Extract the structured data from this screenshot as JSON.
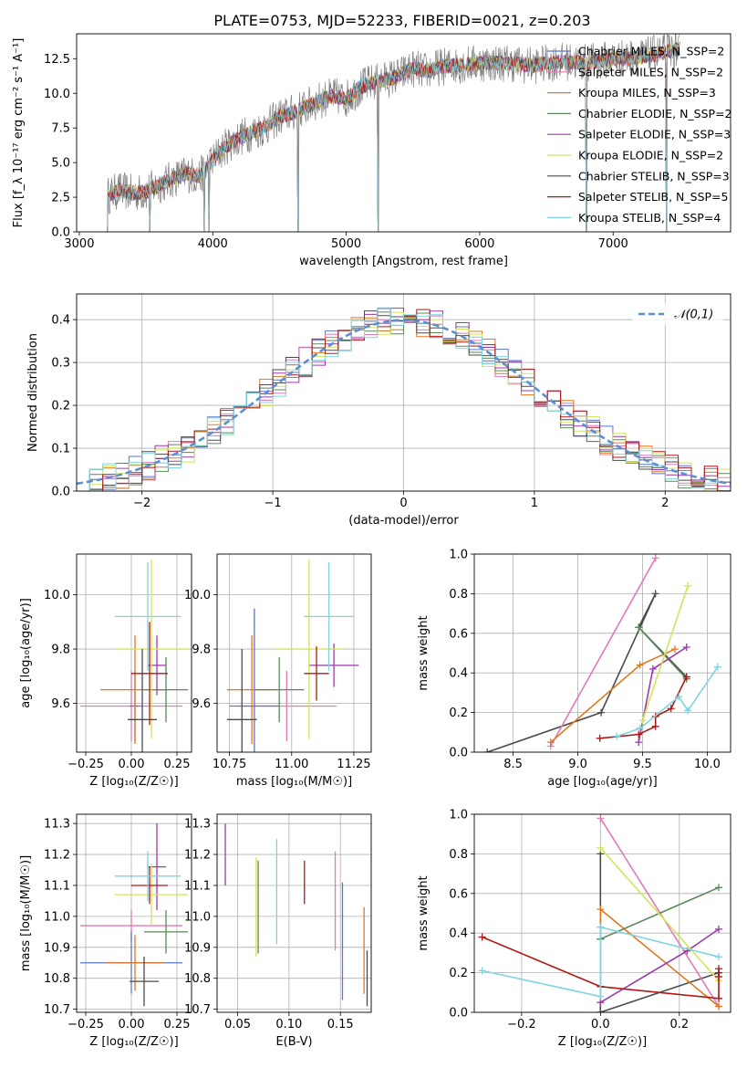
{
  "figure": {
    "title": "PLATE=0753, MJD=52233, FIBERID=0021, z=0.203"
  },
  "chart_data": [
    {
      "id": "spectrum",
      "type": "line",
      "title": "PLATE=0753, MJD=52233, FIBERID=0021, z=0.203",
      "xlabel": "wavelength [Angstrom, rest frame]",
      "ylabel": "Flux [f_λ 10⁻¹⁷ erg cm⁻² s⁻¹ A⁻¹]",
      "xlim": [
        2980,
        7880
      ],
      "ylim": [
        0,
        14.3
      ],
      "xticks": [
        3000,
        4000,
        5000,
        6000,
        7000
      ],
      "yticks": [
        0.0,
        2.5,
        5.0,
        7.5,
        10.0,
        12.5
      ],
      "grid": false,
      "legend_position": "right",
      "continuum": {
        "x": [
          3210,
          3300,
          3400,
          3500,
          3600,
          3700,
          3800,
          3900,
          4000,
          4100,
          4200,
          4300,
          4400,
          4500,
          4600,
          4700,
          4800,
          4900,
          5000,
          5100,
          5200,
          5300,
          5400,
          5500,
          5600,
          5700,
          5800,
          5900,
          6000,
          6200,
          6400,
          6600,
          6800,
          7000,
          7200,
          7400,
          7500
        ],
        "y": [
          2.6,
          3.0,
          2.8,
          2.9,
          3.4,
          3.8,
          4.2,
          4.0,
          5.2,
          6.2,
          6.8,
          7.2,
          7.6,
          8.3,
          8.6,
          9.0,
          9.5,
          9.8,
          9.6,
          10.4,
          10.8,
          11.0,
          11.3,
          11.8,
          11.6,
          11.9,
          12.0,
          12.1,
          12.2,
          12.2,
          12.0,
          12.3,
          12.2,
          12.5,
          12.6,
          13.0,
          13.2
        ]
      },
      "series": [
        {
          "name": "Chabrier MILES, N_SSP=2",
          "color": "#5a78c8"
        },
        {
          "name": "Salpeter MILES, N_SSP=2",
          "color": "#e07ab8"
        },
        {
          "name": "Kroupa MILES, N_SSP=3",
          "color": "#e07820"
        },
        {
          "name": "Chabrier ELODIE, N_SSP=2",
          "color": "#5a8a5a"
        },
        {
          "name": "Salpeter ELODIE, N_SSP=3",
          "color": "#9b3aa8"
        },
        {
          "name": "Kroupa ELODIE, N_SSP=2",
          "color": "#d4e35a"
        },
        {
          "name": "Chabrier STELIB, N_SSP=3",
          "color": "#4a4a4a"
        },
        {
          "name": "Salpeter STELIB, N_SSP=5",
          "color": "#b01818"
        },
        {
          "name": "Kroupa STELIB, N_SSP=4",
          "color": "#80d4e0"
        }
      ],
      "data_color": "#808080"
    },
    {
      "id": "residuals",
      "type": "line",
      "xlabel": "(data-model)/error",
      "ylabel": "Normed distribution",
      "xlim": [
        -2.5,
        2.5
      ],
      "ylim": [
        0,
        0.46
      ],
      "xticks": [
        -2,
        -1,
        0,
        1,
        2
      ],
      "yticks": [
        0.0,
        0.1,
        0.2,
        0.3,
        0.4
      ],
      "grid": true,
      "legend": "𝒩(0,1)",
      "legend_position": "top-right",
      "normal_color": "#5b8fd4",
      "bin_width": 0.1
    },
    {
      "id": "age-vs-Z",
      "type": "scatter",
      "xlabel": "Z [log₁₀(Z/Z☉)]",
      "ylabel": "age  [log₁₀(age/yr)]",
      "xlim": [
        -0.3,
        0.33
      ],
      "ylim": [
        9.42,
        10.15
      ],
      "xticks": [
        -0.25,
        0.0,
        0.25
      ],
      "yticks": [
        9.6,
        9.8,
        10.0
      ],
      "grid": true,
      "points": [
        {
          "series": "Salpeter MILES",
          "x": 0.0,
          "y": 9.59,
          "xerr": 0.28,
          "yerr": 0.13
        },
        {
          "series": "Chabrier MILES",
          "x": 0.02,
          "y": 9.59,
          "xerr": 0.03,
          "yerr": 0.13
        },
        {
          "series": "Kroupa MILES",
          "x": 0.02,
          "y": 9.65,
          "xerr": 0.19,
          "yerr": 0.2
        },
        {
          "series": "Chabrier ELODIE",
          "x": 0.19,
          "y": 9.65,
          "xerr": 0.12,
          "yerr": 0.12
        },
        {
          "series": "Salpeter ELODIE",
          "x": 0.14,
          "y": 9.74,
          "xerr": 0.05,
          "yerr": 0.11
        },
        {
          "series": "Kroupa ELODIE",
          "x": 0.11,
          "y": 9.8,
          "xerr": 0.2,
          "yerr": 0.33
        },
        {
          "series": "Chabrier STELIB",
          "x": 0.06,
          "y": 9.54,
          "xerr": 0.08,
          "yerr": 0.26
        },
        {
          "series": "Salpeter STELIB",
          "x": 0.1,
          "y": 9.71,
          "xerr": 0.1,
          "yerr": 0.19
        },
        {
          "series": "Kroupa STELIB",
          "x": 0.09,
          "y": 9.92,
          "xerr": 0.18,
          "yerr": 0.2
        }
      ]
    },
    {
      "id": "age-vs-mass",
      "type": "scatter",
      "xlabel": "mass [log₁₀(M/M☉)]",
      "xlim": [
        10.7,
        11.32
      ],
      "ylim": [
        9.42,
        10.15
      ],
      "xticks": [
        10.75,
        11.0,
        11.25
      ],
      "yticks": [
        9.6,
        9.8,
        10.0
      ],
      "grid": true,
      "points": [
        {
          "series": "Salpeter MILES",
          "x": 10.98,
          "y": 9.59,
          "xerr": 0.2,
          "yerr": 0.13
        },
        {
          "series": "Chabrier MILES",
          "x": 10.85,
          "y": 9.59,
          "xerr": 0.1,
          "yerr": 0.36
        },
        {
          "series": "Kroupa MILES",
          "x": 10.84,
          "y": 9.65,
          "xerr": 0.1,
          "yerr": 0.2
        },
        {
          "series": "Chabrier ELODIE",
          "x": 10.95,
          "y": 9.65,
          "xerr": 0.1,
          "yerr": 0.12
        },
        {
          "series": "Salpeter ELODIE",
          "x": 11.17,
          "y": 9.74,
          "xerr": 0.1,
          "yerr": 0.08
        },
        {
          "series": "Kroupa ELODIE",
          "x": 11.07,
          "y": 9.8,
          "xerr": 0.14,
          "yerr": 0.33
        },
        {
          "series": "Chabrier STELIB",
          "x": 10.8,
          "y": 9.54,
          "xerr": 0.06,
          "yerr": 0.26
        },
        {
          "series": "Salpeter STELIB",
          "x": 11.1,
          "y": 9.71,
          "xerr": 0.05,
          "yerr": 0.1
        },
        {
          "series": "Kroupa STELIB",
          "x": 11.15,
          "y": 9.92,
          "xerr": 0.1,
          "yerr": 0.2
        }
      ]
    },
    {
      "id": "massweight-vs-age",
      "type": "line",
      "xlabel": "age  [log₁₀(age/yr)]",
      "ylabel": "mass weight",
      "xlim": [
        8.2,
        10.18
      ],
      "ylim": [
        0,
        1.0
      ],
      "xticks": [
        8.5,
        9.0,
        9.5,
        10.0
      ],
      "yticks": [
        0.0,
        0.2,
        0.4,
        0.6,
        0.8,
        1.0
      ],
      "grid": true,
      "series": [
        {
          "series": "Chabrier STELIB",
          "x": [
            8.3,
            9.18,
            9.6,
            9.47,
            9.84
          ],
          "y": [
            0.0,
            0.2,
            0.8,
            0.63,
            0.38
          ]
        },
        {
          "series": "Salpeter MILES",
          "x": [
            8.79,
            9.6
          ],
          "y": [
            0.03,
            0.98
          ]
        },
        {
          "series": "Kroupa MILES",
          "x": [
            8.79,
            9.48,
            9.75
          ],
          "y": [
            0.05,
            0.44,
            0.52
          ]
        },
        {
          "series": "Chabrier ELODIE",
          "x": [
            9.47,
            9.84
          ],
          "y": [
            0.63,
            0.37
          ]
        },
        {
          "series": "Salpeter ELODIE",
          "x": [
            9.47,
            9.58,
            9.84
          ],
          "y": [
            0.05,
            0.42,
            0.53
          ]
        },
        {
          "series": "Kroupa ELODIE",
          "x": [
            9.5,
            9.85
          ],
          "y": [
            0.16,
            0.84
          ]
        },
        {
          "series": "Salpeter STELIB",
          "x": [
            9.17,
            9.47,
            9.6,
            9.6,
            9.72,
            9.84
          ],
          "y": [
            0.07,
            0.09,
            0.13,
            0.18,
            0.22,
            0.38
          ]
        },
        {
          "series": "Kroupa STELIB",
          "x": [
            9.3,
            9.48,
            9.78,
            9.85,
            10.08
          ],
          "y": [
            0.08,
            0.12,
            0.28,
            0.21,
            0.43
          ]
        }
      ]
    },
    {
      "id": "mass-vs-Z",
      "type": "scatter",
      "xlabel": "Z [log₁₀(Z/Z☉)]",
      "ylabel": "mass [log₁₀(M/M☉)]",
      "xlim": [
        -0.3,
        0.33
      ],
      "ylim": [
        10.69,
        11.33
      ],
      "xticks": [
        -0.25,
        0.0,
        0.25
      ],
      "yticks": [
        10.7,
        10.8,
        10.9,
        11.0,
        11.1,
        11.2,
        11.3
      ],
      "grid": true,
      "points": [
        {
          "series": "Salpeter MILES",
          "x": 0.0,
          "y": 10.97,
          "xerr": 0.28,
          "yerr": 0.05
        },
        {
          "series": "Chabrier MILES",
          "x": 0.0,
          "y": 10.85,
          "xerr": 0.28,
          "yerr": 0.1
        },
        {
          "series": "Kroupa MILES",
          "x": 0.02,
          "y": 10.85,
          "xerr": 0.16,
          "yerr": 0.09
        },
        {
          "series": "Chabrier ELODIE",
          "x": 0.19,
          "y": 10.95,
          "xerr": 0.12,
          "yerr": 0.07
        },
        {
          "series": "Salpeter ELODIE",
          "x": 0.14,
          "y": 11.16,
          "xerr": 0.05,
          "yerr": 0.14
        },
        {
          "series": "Kroupa ELODIE",
          "x": 0.11,
          "y": 11.07,
          "xerr": 0.2,
          "yerr": 0.1
        },
        {
          "series": "Chabrier STELIB",
          "x": 0.07,
          "y": 10.79,
          "xerr": 0.08,
          "yerr": 0.08
        },
        {
          "series": "Salpeter STELIB",
          "x": 0.1,
          "y": 11.1,
          "xerr": 0.1,
          "yerr": 0.06
        },
        {
          "series": "Kroupa STELIB",
          "x": 0.09,
          "y": 11.13,
          "xerr": 0.18,
          "yerr": 0.08
        }
      ]
    },
    {
      "id": "mass-vs-EBV",
      "type": "scatter",
      "xlabel": "E(B-V)",
      "xlim": [
        0.03,
        0.18
      ],
      "ylim": [
        10.69,
        11.33
      ],
      "xticks": [
        0.05,
        0.1,
        0.15
      ],
      "yticks": [
        10.7,
        10.8,
        10.9,
        11.0,
        11.1,
        11.2,
        11.3
      ],
      "grid": true,
      "points": [
        {
          "series": "Salpeter ELODIE",
          "x": 0.038,
          "y": 11.2,
          "yerr": 0.1
        },
        {
          "series": "Kroupa ELODIE",
          "x": 0.068,
          "y": 11.03,
          "yerr": 0.16
        },
        {
          "series": "Chabrier ELODIE",
          "x": 0.07,
          "y": 11.03,
          "yerr": 0.15
        },
        {
          "series": "Kroupa STELIB",
          "x": 0.088,
          "y": 11.08,
          "yerr": 0.17
        },
        {
          "series": "Salpeter STELIB",
          "x": 0.115,
          "y": 11.11,
          "yerr": 0.07
        },
        {
          "series": "Salpeter MILES",
          "x": 0.145,
          "y": 11.05,
          "yerr": 0.16
        },
        {
          "series": "Chabrier MILES",
          "x": 0.152,
          "y": 10.92,
          "yerr": 0.19
        },
        {
          "series": "Kroupa MILES",
          "x": 0.173,
          "y": 10.89,
          "yerr": 0.14
        },
        {
          "series": "Chabrier STELIB",
          "x": 0.176,
          "y": 10.8,
          "yerr": 0.09
        }
      ]
    },
    {
      "id": "massweight-vs-Z",
      "type": "line",
      "xlabel": "Z [log₁₀(Z/Z☉)]",
      "ylabel": "mass weight",
      "xlim": [
        -0.32,
        0.33
      ],
      "ylim": [
        0,
        1.0
      ],
      "xticks": [
        -0.2,
        0.0,
        0.2
      ],
      "yticks": [
        0.0,
        0.2,
        0.4,
        0.6,
        0.8,
        1.0
      ],
      "grid": true,
      "series": [
        {
          "series": "Chabrier STELIB",
          "x": [
            0.0,
            0.0,
            0.0,
            0.3,
            0.0
          ],
          "y": [
            0.8,
            0.37,
            0.0,
            0.2,
            0.0
          ]
        },
        {
          "series": "Salpeter MILES",
          "x": [
            0.0,
            0.3
          ],
          "y": [
            0.98,
            0.03
          ]
        },
        {
          "series": "Kroupa MILES",
          "x": [
            0.0,
            0.0,
            0.3
          ],
          "y": [
            0.05,
            0.52,
            0.03
          ]
        },
        {
          "series": "Chabrier ELODIE",
          "x": [
            0.0,
            0.3
          ],
          "y": [
            0.37,
            0.63
          ]
        },
        {
          "series": "Salpeter ELODIE",
          "x": [
            0.0,
            0.22,
            0.3
          ],
          "y": [
            0.05,
            0.31,
            0.42
          ]
        },
        {
          "series": "Kroupa ELODIE",
          "x": [
            0.0,
            0.3
          ],
          "y": [
            0.83,
            0.16
          ]
        },
        {
          "series": "Salpeter STELIB",
          "x": [
            -0.3,
            0.0,
            0.3,
            0.3,
            0.3,
            0.3
          ],
          "y": [
            0.38,
            0.13,
            0.07,
            0.18,
            0.22,
            0.2
          ]
        },
        {
          "series": "Kroupa STELIB",
          "x": [
            -0.3,
            0.0,
            0.0,
            0.0,
            0.3
          ],
          "y": [
            0.21,
            0.08,
            0.43,
            0.43,
            0.28
          ]
        }
      ]
    }
  ]
}
